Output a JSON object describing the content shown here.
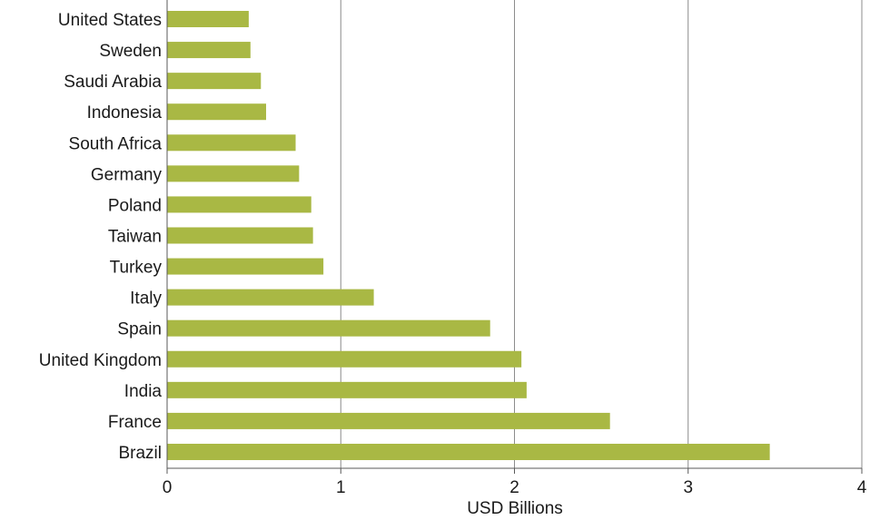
{
  "chart_data": {
    "type": "bar",
    "orientation": "horizontal",
    "title": "",
    "xlabel": "USD Billions",
    "ylabel": "",
    "xlim": [
      0,
      4
    ],
    "x_ticks": [
      "0",
      "1",
      "2",
      "3",
      "4"
    ],
    "grid": "vertical",
    "categories": [
      "United States",
      "Sweden",
      "Saudi Arabia",
      "Indonesia",
      "South Africa",
      "Germany",
      "Poland",
      "Taiwan",
      "Turkey",
      "Italy",
      "Spain",
      "United Kingdom",
      "India",
      "France",
      "Brazil"
    ],
    "values": [
      0.47,
      0.48,
      0.54,
      0.57,
      0.74,
      0.76,
      0.83,
      0.84,
      0.9,
      1.19,
      1.86,
      2.04,
      2.07,
      2.55,
      3.47
    ],
    "bar_color": "#a9b844",
    "grid_color": "#8c8c8c",
    "axis_color": "#595959"
  }
}
